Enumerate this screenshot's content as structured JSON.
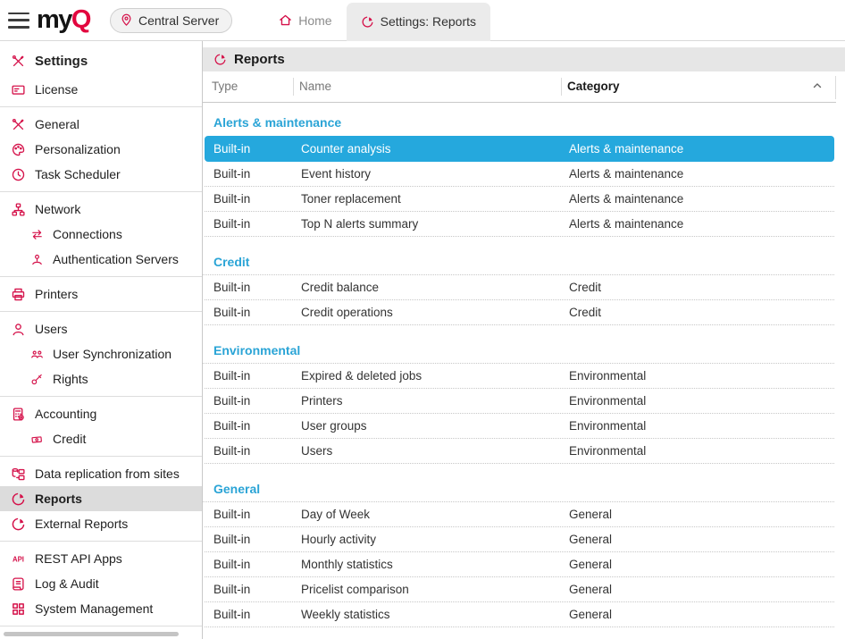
{
  "topbar": {
    "logo": {
      "text_dark": "my",
      "text_red": "Q"
    },
    "server_button": {
      "label": "Central Server",
      "icon": "location-pin-icon"
    },
    "tabs": [
      {
        "label": "Home",
        "icon": "home-icon",
        "active": false
      },
      {
        "label": "Settings: Reports",
        "icon": "pie-chart-icon",
        "active": true
      }
    ]
  },
  "sidebar": {
    "title": {
      "label": "Settings",
      "icon": "tools-icon"
    },
    "items": [
      {
        "label": "License",
        "icon": "license-card-icon"
      },
      {
        "divider": true
      },
      {
        "label": "General",
        "icon": "tools-icon"
      },
      {
        "label": "Personalization",
        "icon": "palette-icon"
      },
      {
        "label": "Task Scheduler",
        "icon": "clock-icon"
      },
      {
        "divider": true
      },
      {
        "label": "Network",
        "icon": "network-icon"
      },
      {
        "label": "Connections",
        "icon": "sync-arrows-icon",
        "sub": true
      },
      {
        "label": "Authentication Servers",
        "icon": "auth-server-icon",
        "sub": true
      },
      {
        "divider": true
      },
      {
        "label": "Printers",
        "icon": "printer-icon"
      },
      {
        "divider": true
      },
      {
        "label": "Users",
        "icon": "user-icon"
      },
      {
        "label": "User Synchronization",
        "icon": "user-sync-icon",
        "sub": true
      },
      {
        "label": "Rights",
        "icon": "key-icon",
        "sub": true
      },
      {
        "divider": true
      },
      {
        "label": "Accounting",
        "icon": "calculator-icon"
      },
      {
        "label": "Credit",
        "icon": "banknote-icon",
        "sub": true
      },
      {
        "divider": true
      },
      {
        "label": "Data replication from sites",
        "icon": "data-replication-icon"
      },
      {
        "label": "Reports",
        "icon": "pie-chart-icon",
        "selected": true
      },
      {
        "label": "External Reports",
        "icon": "pie-chart-icon"
      },
      {
        "divider": true
      },
      {
        "label": "REST API Apps",
        "icon": "api-icon"
      },
      {
        "label": "Log & Audit",
        "icon": "log-scroll-icon"
      },
      {
        "label": "System Management",
        "icon": "grid-icon"
      },
      {
        "divider": true
      }
    ]
  },
  "main": {
    "title": {
      "label": "Reports",
      "icon": "pie-chart-icon"
    },
    "table": {
      "columns": [
        {
          "label": "Type",
          "sorted": false
        },
        {
          "label": "Name",
          "sorted": false
        },
        {
          "label": "Category",
          "sorted": "asc",
          "sort_icon": "chevron-up-icon"
        }
      ],
      "groups": [
        {
          "header": "Alerts & maintenance",
          "rows": [
            {
              "type": "Built-in",
              "name": "Counter analysis",
              "category": "Alerts & maintenance",
              "selected": true
            },
            {
              "type": "Built-in",
              "name": "Event history",
              "category": "Alerts & maintenance"
            },
            {
              "type": "Built-in",
              "name": "Toner replacement",
              "category": "Alerts & maintenance"
            },
            {
              "type": "Built-in",
              "name": "Top N alerts summary",
              "category": "Alerts & maintenance"
            }
          ]
        },
        {
          "header": "Credit",
          "rows": [
            {
              "type": "Built-in",
              "name": "Credit balance",
              "category": "Credit"
            },
            {
              "type": "Built-in",
              "name": "Credit operations",
              "category": "Credit"
            }
          ]
        },
        {
          "header": "Environmental",
          "rows": [
            {
              "type": "Built-in",
              "name": "Expired & deleted jobs",
              "category": "Environmental"
            },
            {
              "type": "Built-in",
              "name": "Printers",
              "category": "Environmental"
            },
            {
              "type": "Built-in",
              "name": "User groups",
              "category": "Environmental"
            },
            {
              "type": "Built-in",
              "name": "Users",
              "category": "Environmental"
            }
          ]
        },
        {
          "header": "General",
          "rows": [
            {
              "type": "Built-in",
              "name": "Day of Week",
              "category": "General"
            },
            {
              "type": "Built-in",
              "name": "Hourly activity",
              "category": "General"
            },
            {
              "type": "Built-in",
              "name": "Monthly statistics",
              "category": "General"
            },
            {
              "type": "Built-in",
              "name": "Pricelist comparison",
              "category": "General"
            },
            {
              "type": "Built-in",
              "name": "Weekly statistics",
              "category": "General"
            }
          ]
        }
      ]
    }
  },
  "colors": {
    "brand_red": "#e2063e",
    "icon_red": "#d5134b",
    "selection_blue": "#25a8dd",
    "group_header_blue": "#2aa4d6",
    "sidebar_selected_bg": "#dcdcdc",
    "header_band_bg": "#e6e6e6",
    "active_tab_bg": "#ebebeb"
  }
}
